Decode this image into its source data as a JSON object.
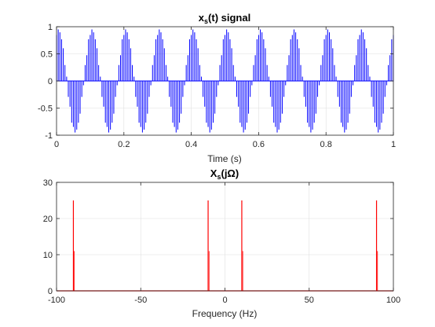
{
  "figure": {
    "background": "#ffffff"
  },
  "chart_data": [
    {
      "type": "line",
      "title": "x",
      "title_sub": "s",
      "title_rest": "(t)  signal",
      "xlabel": "Time (s)",
      "ylabel": "",
      "xlim": [
        0,
        1
      ],
      "ylim": [
        -1,
        1
      ],
      "xticks": [
        0,
        0.2,
        0.4,
        0.6,
        0.8,
        1
      ],
      "xtick_labels": [
        "0",
        "0.2",
        "0.4",
        "0.6",
        "0.8",
        "1"
      ],
      "yticks": [
        -1,
        -0.5,
        0,
        0.5,
        1
      ],
      "ytick_labels": [
        "-1",
        "-0.5",
        "0",
        "0.5",
        "1"
      ],
      "grid": true,
      "color": "#0000ff",
      "series": [
        {
          "signal": "0.5*cos(2*pi*10*t) + 0.5*cos(2*pi*90*t)",
          "sampling": "impulses every 0.01 s",
          "t_range": [
            0,
            1
          ]
        }
      ]
    },
    {
      "type": "line",
      "title": "X",
      "title_sub": "s",
      "title_rest": "(jΩ)",
      "xlabel": "Frequency (Hz)",
      "ylabel": "",
      "xlim": [
        -100,
        100
      ],
      "ylim": [
        0,
        30
      ],
      "xticks": [
        -100,
        -50,
        0,
        50,
        100
      ],
      "xtick_labels": [
        "-100",
        "-50",
        "0",
        "50",
        "100"
      ],
      "yticks": [
        0,
        10,
        20,
        30
      ],
      "ytick_labels": [
        "0",
        "10",
        "20",
        "30"
      ],
      "grid": true,
      "color": "#ff0000",
      "peaks": [
        {
          "x": -90,
          "y": 25
        },
        {
          "x": -10,
          "y": 25
        },
        {
          "x": 10,
          "y": 25
        },
        {
          "x": 90,
          "y": 25
        }
      ]
    }
  ]
}
